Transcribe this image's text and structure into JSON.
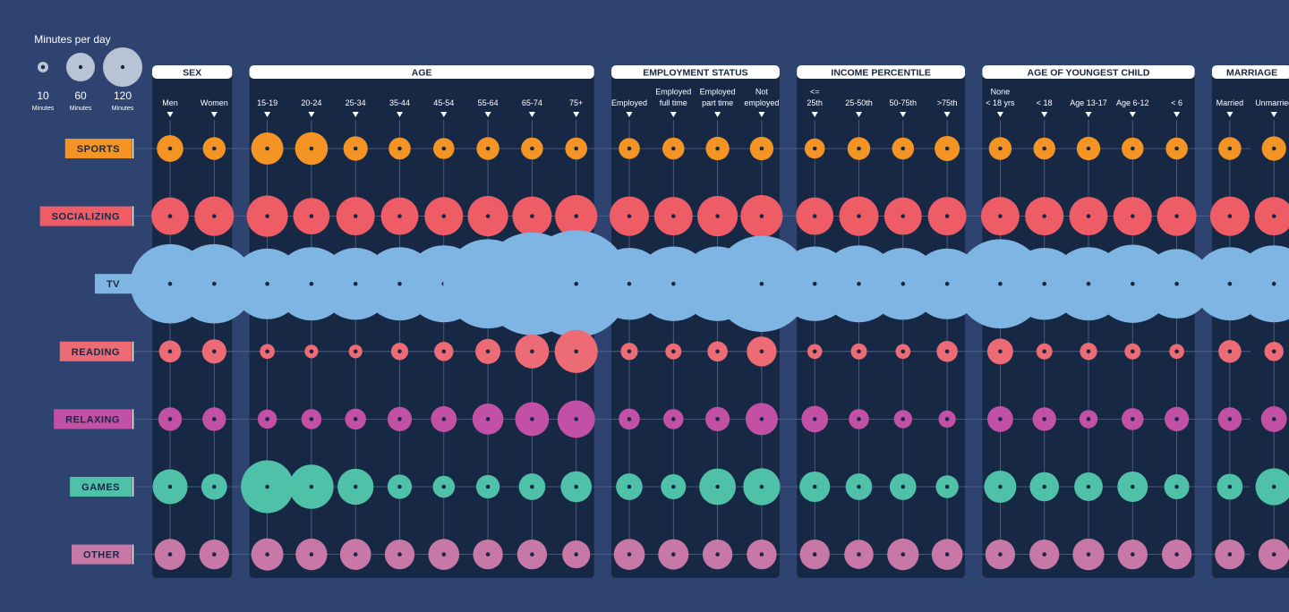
{
  "legend": {
    "title": "Minutes per day",
    "items": [
      {
        "value": "10",
        "unit": "Minutes"
      },
      {
        "value": "60",
        "unit": "Minutes"
      },
      {
        "value": "120",
        "unit": "Minutes"
      }
    ]
  },
  "colors": {
    "background": "#2e4370",
    "panel": "#172845",
    "header_bg": "#ffffff",
    "header_text": "#172845",
    "grid": "#55688a",
    "legend_circle": "#b9c3d6"
  },
  "chart_data": {
    "type": "bubble-matrix",
    "title": "",
    "unit": "Minutes per day",
    "groups": [
      {
        "name": "SEX",
        "columns": [
          [
            "Men"
          ],
          [
            "Women"
          ]
        ]
      },
      {
        "name": "AGE",
        "columns": [
          [
            "15-19"
          ],
          [
            "20-24"
          ],
          [
            "25-34"
          ],
          [
            "35-44"
          ],
          [
            "45-54"
          ],
          [
            "55-64"
          ],
          [
            "65-74"
          ],
          [
            "75+"
          ]
        ]
      },
      {
        "name": "EMPLOYMENT STATUS",
        "columns": [
          [
            "Employed"
          ],
          [
            "Employed",
            "full time"
          ],
          [
            "Employed",
            "part time"
          ],
          [
            "Not",
            "employed"
          ]
        ]
      },
      {
        "name": "INCOME PERCENTILE",
        "columns": [
          [
            "<=",
            "25th"
          ],
          [
            "25-50th"
          ],
          [
            "50-75th"
          ],
          [
            ">75th"
          ]
        ]
      },
      {
        "name": "AGE OF YOUNGEST CHILD",
        "columns": [
          [
            "None",
            "< 18 yrs"
          ],
          [
            "< 18"
          ],
          [
            "Age 13-17"
          ],
          [
            "Age 6-12"
          ],
          [
            "< 6"
          ]
        ]
      },
      {
        "name": "MARRIAGE",
        "columns": [
          [
            "Married"
          ],
          [
            "Unmarried"
          ]
        ]
      }
    ],
    "rows": [
      {
        "name": "SPORTS",
        "color": "#f39424",
        "values": [
          19,
          14,
          28,
          29,
          16,
          13,
          12,
          14,
          13,
          13,
          12,
          13,
          15,
          15,
          11,
          14,
          13,
          17,
          14,
          13,
          15,
          13,
          13,
          14,
          16
        ]
      },
      {
        "name": "SOCIALIZING",
        "color": "#ee5c66",
        "values": [
          38,
          42,
          46,
          36,
          40,
          38,
          40,
          44,
          42,
          48,
          42,
          40,
          44,
          48,
          38,
          42,
          38,
          40,
          40,
          40,
          40,
          40,
          42,
          42,
          40
        ]
      },
      {
        "name": "TV",
        "color": "#7fb5e2",
        "values": [
          170,
          170,
          135,
          145,
          140,
          145,
          160,
          215,
          285,
          310,
          140,
          150,
          150,
          250,
          150,
          160,
          140,
          135,
          215,
          140,
          145,
          165,
          130,
          145,
          160
        ]
      },
      {
        "name": "READING",
        "color": "#ec6b75",
        "values": [
          13,
          16,
          6,
          5,
          5,
          8,
          10,
          17,
          31,
          50,
          8,
          7,
          11,
          24,
          6,
          7,
          6,
          12,
          18,
          7,
          8,
          7,
          6,
          14,
          10
        ]
      },
      {
        "name": "RELAXING",
        "color": "#c250a5",
        "values": [
          15,
          15,
          10,
          11,
          12,
          16,
          18,
          26,
          31,
          38,
          12,
          11,
          16,
          28,
          19,
          11,
          9,
          8,
          18,
          15,
          9,
          13,
          16,
          15,
          18
        ]
      },
      {
        "name": "GAMES",
        "color": "#4fc1a8",
        "values": [
          33,
          18,
          75,
          53,
          35,
          16,
          13,
          15,
          19,
          26,
          19,
          17,
          36,
          37,
          25,
          19,
          19,
          14,
          28,
          23,
          22,
          25,
          17,
          18,
          37
        ]
      },
      {
        "name": "OTHER",
        "color": "#c778a6",
        "values": [
          26,
          24,
          28,
          27,
          26,
          24,
          26,
          24,
          24,
          21,
          26,
          25,
          24,
          24,
          24,
          23,
          27,
          26,
          24,
          24,
          27,
          24,
          24,
          24,
          26
        ]
      }
    ]
  }
}
